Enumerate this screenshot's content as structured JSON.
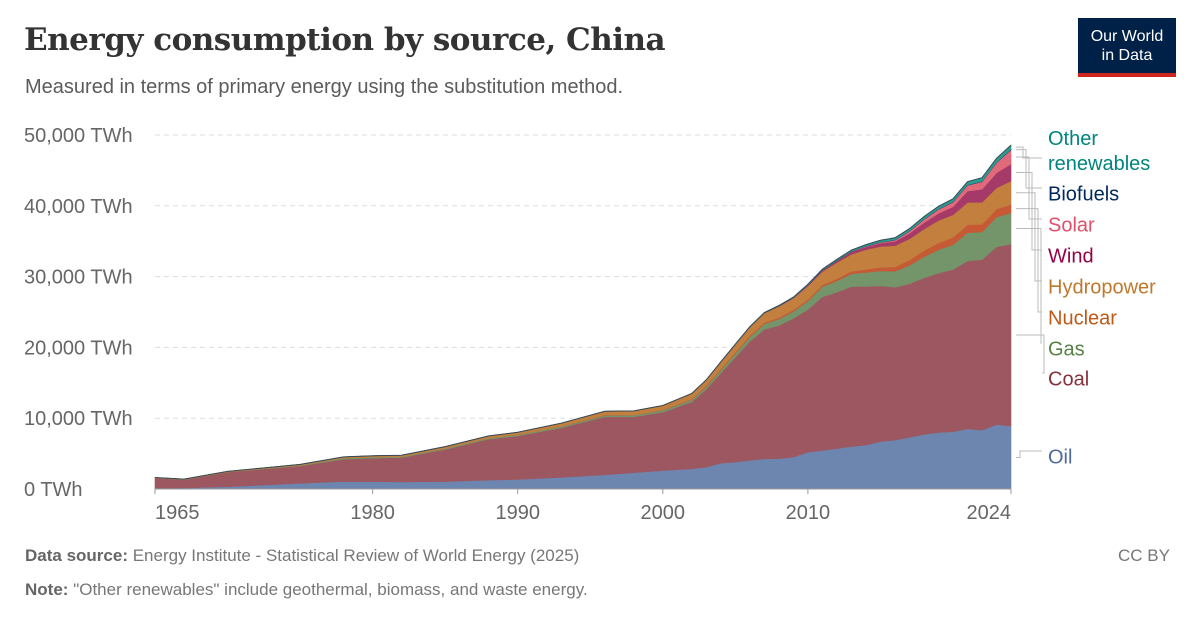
{
  "title": "Energy consumption by source, China",
  "subtitle": "Measured in terms of primary energy using the substitution method.",
  "logo": {
    "line1": "Our World",
    "line2": "in Data"
  },
  "footer": {
    "source_label": "Data source:",
    "source": "Energy Institute - Statistical Review of World Energy (2025)",
    "note_label": "Note:",
    "note": "\"Other renewables\" include geothermal, biomass, and waste energy.",
    "license": "CC BY"
  },
  "chart_data": {
    "type": "area",
    "stacked": true,
    "title": "Energy consumption by source, China",
    "xlabel": "",
    "ylabel": "",
    "ylim": [
      0,
      50000
    ],
    "xlim": [
      1965,
      2024
    ],
    "y_ticks": [
      "0 TWh",
      "10,000 TWh",
      "20,000 TWh",
      "30,000 TWh",
      "40,000 TWh",
      "50,000 TWh"
    ],
    "y_tick_values": [
      0,
      10000,
      20000,
      30000,
      40000,
      50000
    ],
    "x_ticks": [
      "1965",
      "1980",
      "1990",
      "2000",
      "2010",
      "2024"
    ],
    "x_tick_values": [
      1965,
      1980,
      1990,
      2000,
      2010,
      2024
    ],
    "grid": "horizontal dashed",
    "legend": "right",
    "x": [
      1965,
      1967,
      1970,
      1975,
      1978,
      1980,
      1982,
      1985,
      1988,
      1990,
      1993,
      1996,
      1998,
      2000,
      2002,
      2003,
      2004,
      2005,
      2006,
      2007,
      2008,
      2009,
      2010,
      2011,
      2012,
      2013,
      2014,
      2015,
      2016,
      2017,
      2018,
      2019,
      2020,
      2021,
      2022,
      2023,
      2024
    ],
    "series": [
      {
        "name": "Oil",
        "color": "#6D86B0",
        "label_color": "#4C6A9C",
        "values": [
          130,
          150,
          330,
          800,
          1060,
          1050,
          1000,
          1050,
          1250,
          1340,
          1650,
          2000,
          2300,
          2600,
          2850,
          3100,
          3650,
          3800,
          4050,
          4250,
          4300,
          4500,
          5200,
          5450,
          5700,
          6000,
          6200,
          6700,
          6900,
          7300,
          7700,
          8000,
          8100,
          8500,
          8300,
          9100,
          8900
        ]
      },
      {
        "name": "Coal",
        "color": "#9D5760",
        "label_color": "#883039",
        "values": [
          1420,
          1150,
          2050,
          2450,
          3150,
          3300,
          3450,
          4550,
          5800,
          6150,
          7000,
          8200,
          7900,
          8250,
          9450,
          11000,
          12700,
          14800,
          16800,
          18300,
          18800,
          19600,
          20150,
          21700,
          22100,
          22600,
          22400,
          22000,
          21600,
          21700,
          22100,
          22500,
          22900,
          23700,
          24100,
          25100,
          25700
        ]
      },
      {
        "name": "Gas",
        "color": "#74956A",
        "label_color": "#578145",
        "values": [
          30,
          40,
          35,
          100,
          160,
          160,
          130,
          140,
          150,
          170,
          190,
          210,
          230,
          280,
          330,
          380,
          450,
          540,
          640,
          790,
          900,
          990,
          1200,
          1450,
          1600,
          1800,
          2000,
          2100,
          2250,
          2600,
          3000,
          3300,
          3500,
          4000,
          3900,
          4200,
          4400
        ]
      },
      {
        "name": "Nuclear",
        "color": "#C55A34",
        "label_color": "#C05917",
        "values": [
          0,
          0,
          0,
          0,
          0,
          0,
          0,
          0,
          0,
          0,
          10,
          40,
          40,
          50,
          80,
          130,
          150,
          160,
          170,
          180,
          200,
          200,
          220,
          260,
          290,
          330,
          400,
          510,
          620,
          730,
          860,
          970,
          1020,
          1120,
          1100,
          1140,
          1200
        ]
      },
      {
        "name": "Hydropower",
        "color": "#C27F3E",
        "label_color": "#C0782E",
        "values": [
          50,
          55,
          70,
          130,
          160,
          180,
          200,
          250,
          300,
          350,
          450,
          530,
          560,
          620,
          780,
          800,
          990,
          1100,
          1200,
          1330,
          1600,
          1640,
          1900,
          1850,
          2300,
          2400,
          2800,
          2950,
          3000,
          3000,
          3050,
          3150,
          3200,
          3150,
          3100,
          3000,
          3300
        ]
      },
      {
        "name": "Wind",
        "color": "#A53A69",
        "label_color": "#970046",
        "values": [
          0,
          0,
          0,
          0,
          0,
          0,
          0,
          0,
          0,
          0,
          0,
          0,
          0,
          0,
          0,
          0,
          0,
          5,
          10,
          15,
          35,
          70,
          120,
          190,
          250,
          360,
          400,
          460,
          600,
          770,
          900,
          1000,
          1150,
          1600,
          1850,
          2100,
          2400
        ]
      },
      {
        "name": "Solar",
        "color": "#E06A7A",
        "label_color": "#E0506A",
        "values": [
          0,
          0,
          0,
          0,
          0,
          0,
          0,
          0,
          0,
          0,
          0,
          0,
          0,
          0,
          0,
          0,
          0,
          0,
          0,
          0,
          0,
          0,
          2,
          5,
          10,
          20,
          60,
          100,
          170,
          300,
          450,
          570,
          650,
          820,
          1050,
          1450,
          2000
        ]
      },
      {
        "name": "Biofuels",
        "color": "#1B3C6E",
        "label_color": "#00295B",
        "values": [
          0,
          0,
          0,
          0,
          0,
          0,
          0,
          0,
          0,
          0,
          0,
          0,
          0,
          0,
          0,
          0,
          0,
          10,
          15,
          20,
          25,
          30,
          35,
          40,
          45,
          50,
          50,
          55,
          55,
          60,
          65,
          70,
          70,
          70,
          75,
          75,
          80
        ]
      },
      {
        "name": "Other renewables",
        "color": "#2A9D8F",
        "label_color": "#00847E",
        "values": [
          0,
          0,
          0,
          0,
          0,
          0,
          0,
          0,
          0,
          0,
          0,
          0,
          0,
          0,
          10,
          15,
          20,
          30,
          40,
          50,
          60,
          80,
          100,
          120,
          150,
          180,
          210,
          250,
          280,
          310,
          340,
          370,
          400,
          450,
          500,
          550,
          600
        ]
      }
    ]
  }
}
